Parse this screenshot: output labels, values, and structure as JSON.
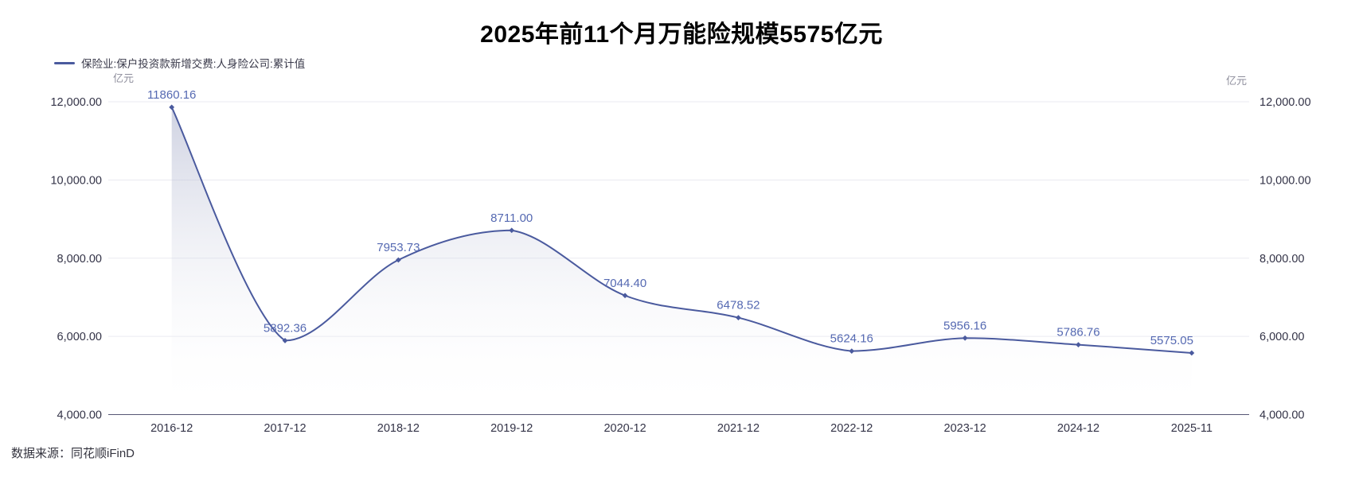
{
  "source_note": "数据来源：同花顺iFinD",
  "chart_data": {
    "type": "line",
    "title": "2025年前11个月万能险规模5575亿元",
    "legend": "保险业:保户投资款新增交费:人身险公司:累计值",
    "legend_position": "top-left",
    "unit_label_left": "亿元",
    "unit_label_right": "亿元",
    "categories": [
      "2016-12",
      "2017-12",
      "2018-12",
      "2019-12",
      "2020-12",
      "2021-12",
      "2022-12",
      "2023-12",
      "2024-12",
      "2025-11"
    ],
    "values": [
      11860.16,
      5892.36,
      7953.73,
      8711.0,
      7044.4,
      6478.52,
      5624.16,
      5956.16,
      5786.76,
      5575.05
    ],
    "value_labels": [
      "11860.16",
      "5892.36",
      "7953.73",
      "8711.00",
      "7044.40",
      "6478.52",
      "5624.16",
      "5956.16",
      "5786.76",
      "5575.05"
    ],
    "label_dx": [
      0,
      0,
      0,
      0,
      0,
      0,
      0,
      0,
      0,
      -25
    ],
    "ylim": [
      4000,
      12000
    ],
    "y_ticks": [
      {
        "value": 4000,
        "label": "4,000.00"
      },
      {
        "value": 6000,
        "label": "6,000.00"
      },
      {
        "value": 8000,
        "label": "8,000.00"
      },
      {
        "value": 10000,
        "label": "10,000.00"
      },
      {
        "value": 12000,
        "label": "12,000.00"
      }
    ],
    "grid": "horizontal",
    "smooth": true,
    "area": true,
    "colors": {
      "series_line": "#4a5a9e",
      "point_label": "#5569b2",
      "area_fill_top": "#a8aeca",
      "area_fill_top_opacity": 0.55,
      "axis_line": "#565674",
      "gridline": "#eaeaf1",
      "tick_text": "#333347",
      "unit_text": "#8e8e9c",
      "legend_text": "#39394a",
      "title_text": "#000000"
    }
  }
}
